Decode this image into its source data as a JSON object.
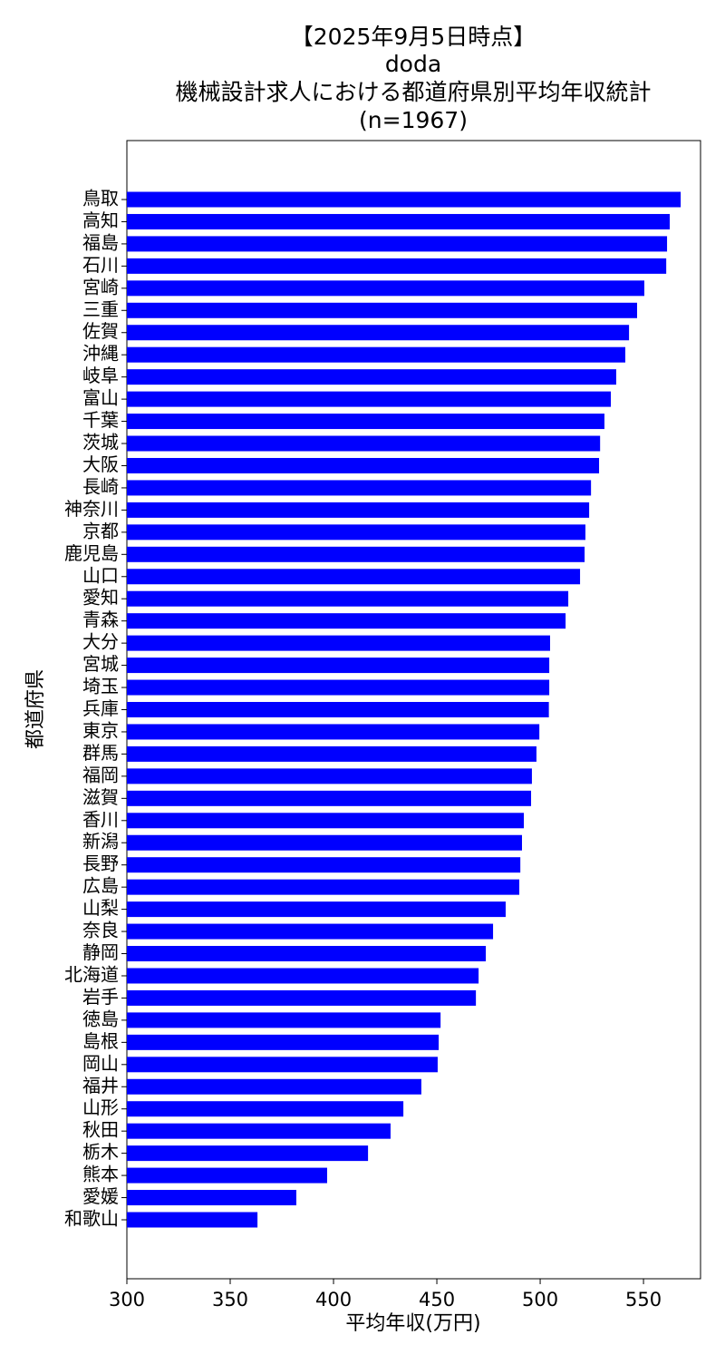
{
  "chart_data": {
    "type": "barh",
    "title": [
      "【2025年9月5日時点】",
      "doda",
      "機械設計求人における都道府県別平均年収統計",
      "(n=1967)"
    ],
    "xlabel": "平均年収(万円)",
    "ylabel": "都道府県",
    "categories": [
      "鳥取",
      "高知",
      "福島",
      "石川",
      "宮崎",
      "三重",
      "佐賀",
      "沖縄",
      "岐阜",
      "富山",
      "千葉",
      "茨城",
      "大阪",
      "長崎",
      "神奈川",
      "京都",
      "鹿児島",
      "山口",
      "愛知",
      "青森",
      "大分",
      "宮城",
      "埼玉",
      "兵庫",
      "東京",
      "群馬",
      "福岡",
      "滋賀",
      "香川",
      "新潟",
      "長野",
      "広島",
      "山梨",
      "奈良",
      "静岡",
      "北海道",
      "岩手",
      "徳島",
      "島根",
      "岡山",
      "福井",
      "山形",
      "秋田",
      "栃木",
      "熊本",
      "愛媛",
      "和歌山"
    ],
    "values": [
      568,
      562.7,
      561.4,
      561,
      550.4,
      546.9,
      543,
      541.2,
      536.8,
      534.2,
      531.1,
      529,
      528.5,
      524.6,
      523.7,
      521.9,
      521.5,
      519.3,
      513.6,
      512.3,
      504.8,
      504.4,
      504.4,
      504.2,
      499.6,
      498.2,
      496,
      495.6,
      492.1,
      491.2,
      490.4,
      489.9,
      483.3,
      477.2,
      473.7,
      470.2,
      468.9,
      451.8,
      450.9,
      450.4,
      442.5,
      433.8,
      427.6,
      416.7,
      396.9,
      382,
      363.2
    ],
    "color": "#0000ff",
    "xlim": [
      300,
      577.6
    ],
    "xticks": [
      300,
      350,
      400,
      450,
      500,
      550
    ]
  }
}
